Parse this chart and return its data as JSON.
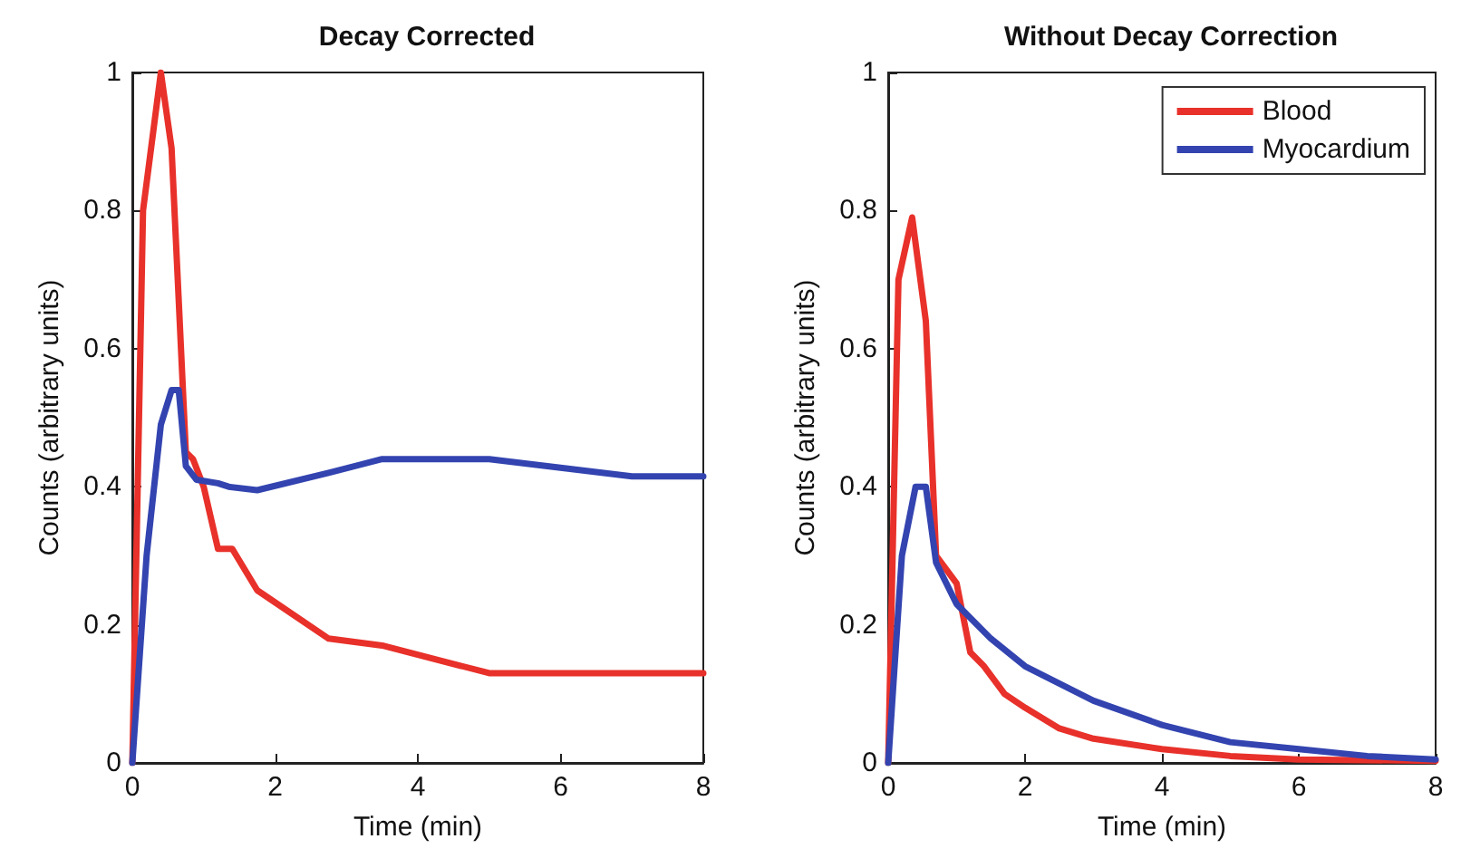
{
  "chart_data": [
    {
      "type": "line",
      "title": "Decay Corrected",
      "xlabel": "Time (min)",
      "ylabel": "Counts (arbitrary units)",
      "xlim": [
        0,
        8
      ],
      "xticks": [
        0,
        2,
        4,
        6,
        8
      ],
      "ylim": [
        0,
        1
      ],
      "yticks": [
        0,
        0.2,
        0.4,
        0.6,
        0.8,
        1
      ],
      "grid": false,
      "legend": false,
      "marker": "none",
      "line_style": "solid",
      "series": [
        {
          "color": "#e8312a",
          "x": [
            0,
            0.15,
            0.4,
            0.55,
            0.75,
            0.85,
            1.0,
            1.2,
            1.4,
            1.75,
            2.75,
            3.5,
            5,
            8
          ],
          "values": [
            0,
            0.8,
            1.0,
            0.89,
            0.45,
            0.44,
            0.4,
            0.31,
            0.31,
            0.25,
            0.18,
            0.17,
            0.13,
            0.13
          ]
        },
        {
          "color": "#3344b0",
          "x": [
            0,
            0.2,
            0.4,
            0.55,
            0.65,
            0.75,
            0.9,
            1.2,
            1.35,
            1.75,
            2.75,
            3.5,
            5,
            7,
            8
          ],
          "values": [
            0,
            0.3,
            0.49,
            0.54,
            0.54,
            0.43,
            0.41,
            0.405,
            0.4,
            0.395,
            0.42,
            0.44,
            0.44,
            0.415,
            0.415
          ]
        }
      ]
    },
    {
      "type": "line",
      "title": "Without Decay Correction",
      "xlabel": "Time (min)",
      "ylabel": "Counts (arbitrary units)",
      "xlim": [
        0,
        8
      ],
      "xticks": [
        0,
        2,
        4,
        6,
        8
      ],
      "ylim": [
        0,
        1
      ],
      "yticks": [
        0,
        0.2,
        0.4,
        0.6,
        0.8,
        1
      ],
      "grid": false,
      "legend": "top right",
      "marker": "none",
      "line_style": "solid",
      "series": [
        {
          "name": "Blood",
          "color": "#e8312a",
          "x": [
            0,
            0.15,
            0.35,
            0.55,
            0.7,
            1.0,
            1.2,
            1.4,
            1.7,
            2,
            2.5,
            3,
            4,
            5,
            6,
            8
          ],
          "values": [
            0,
            0.7,
            0.79,
            0.64,
            0.3,
            0.26,
            0.16,
            0.14,
            0.1,
            0.08,
            0.05,
            0.035,
            0.02,
            0.01,
            0.005,
            0.003
          ]
        },
        {
          "name": "Myocardium",
          "color": "#3344b0",
          "x": [
            0,
            0.2,
            0.4,
            0.55,
            0.7,
            1,
            1.5,
            2,
            3,
            4,
            5,
            6,
            7,
            8
          ],
          "values": [
            0,
            0.3,
            0.4,
            0.4,
            0.29,
            0.23,
            0.18,
            0.14,
            0.09,
            0.055,
            0.03,
            0.02,
            0.01,
            0.005
          ]
        }
      ]
    }
  ]
}
